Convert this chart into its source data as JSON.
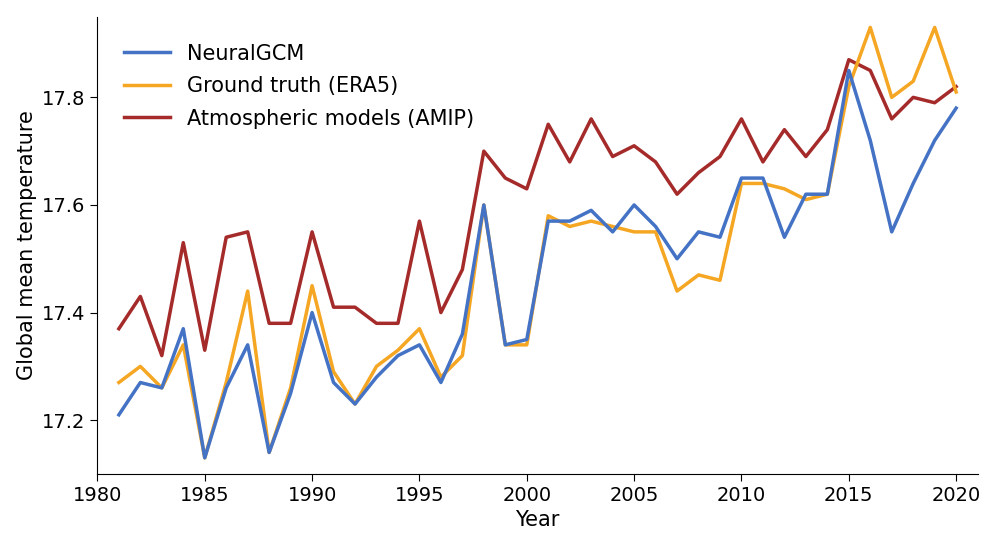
{
  "title": "",
  "xlabel": "Year",
  "ylabel": "Global mean temperature",
  "xlim": [
    1980,
    2021
  ],
  "ylim": [
    17.1,
    17.95
  ],
  "yticks": [
    17.2,
    17.4,
    17.6,
    17.8
  ],
  "xticks": [
    1980,
    1985,
    1990,
    1995,
    2000,
    2005,
    2010,
    2015,
    2020
  ],
  "background_color": "#ffffff",
  "neural_gcm": {
    "label": "NeuralGCM",
    "color": "#4472C4",
    "years": [
      1981,
      1982,
      1983,
      1984,
      1985,
      1986,
      1987,
      1988,
      1989,
      1990,
      1991,
      1992,
      1993,
      1994,
      1995,
      1996,
      1997,
      1998,
      1999,
      2000,
      2001,
      2002,
      2003,
      2004,
      2005,
      2006,
      2007,
      2008,
      2009,
      2010,
      2011,
      2012,
      2013,
      2014,
      2015,
      2016,
      2017,
      2018,
      2019,
      2020
    ],
    "values": [
      17.21,
      17.27,
      17.26,
      17.37,
      17.13,
      17.26,
      17.34,
      17.14,
      17.25,
      17.4,
      17.27,
      17.23,
      17.28,
      17.32,
      17.34,
      17.27,
      17.36,
      17.6,
      17.34,
      17.35,
      17.57,
      17.57,
      17.59,
      17.55,
      17.6,
      17.56,
      17.5,
      17.55,
      17.54,
      17.65,
      17.65,
      17.54,
      17.62,
      17.62,
      17.85,
      17.72,
      17.55,
      17.64,
      17.72,
      17.78
    ]
  },
  "era5": {
    "label": "Ground truth (ERA5)",
    "color": "#F5A623",
    "years": [
      1981,
      1982,
      1983,
      1984,
      1985,
      1986,
      1987,
      1988,
      1989,
      1990,
      1991,
      1992,
      1993,
      1994,
      1995,
      1996,
      1997,
      1998,
      1999,
      2000,
      2001,
      2002,
      2003,
      2004,
      2005,
      2006,
      2007,
      2008,
      2009,
      2010,
      2011,
      2012,
      2013,
      2014,
      2015,
      2016,
      2017,
      2018,
      2019,
      2020
    ],
    "values": [
      17.27,
      17.3,
      17.26,
      17.34,
      17.13,
      17.27,
      17.44,
      17.14,
      17.26,
      17.45,
      17.29,
      17.23,
      17.3,
      17.33,
      17.37,
      17.28,
      17.32,
      17.6,
      17.34,
      17.34,
      17.58,
      17.56,
      17.57,
      17.56,
      17.55,
      17.55,
      17.44,
      17.47,
      17.46,
      17.64,
      17.64,
      17.63,
      17.61,
      17.62,
      17.82,
      17.93,
      17.8,
      17.83,
      17.93,
      17.81
    ]
  },
  "amip": {
    "label": "Atmospheric models (AMIP)",
    "color": "#A52A2A",
    "years": [
      1981,
      1982,
      1983,
      1984,
      1985,
      1986,
      1987,
      1988,
      1989,
      1990,
      1991,
      1992,
      1993,
      1994,
      1995,
      1996,
      1997,
      1998,
      1999,
      2000,
      2001,
      2002,
      2003,
      2004,
      2005,
      2006,
      2007,
      2008,
      2009,
      2010,
      2011,
      2012,
      2013,
      2014,
      2015,
      2016,
      2017,
      2018,
      2019,
      2020
    ],
    "values": [
      17.37,
      17.43,
      17.32,
      17.53,
      17.33,
      17.54,
      17.55,
      17.38,
      17.38,
      17.55,
      17.41,
      17.41,
      17.38,
      17.38,
      17.57,
      17.4,
      17.48,
      17.7,
      17.65,
      17.63,
      17.75,
      17.68,
      17.76,
      17.69,
      17.71,
      17.68,
      17.62,
      17.66,
      17.69,
      17.76,
      17.68,
      17.74,
      17.69,
      17.74,
      17.87,
      17.85,
      17.76,
      17.8,
      17.79,
      17.82
    ]
  },
  "linewidth": 2.5,
  "legend_fontsize": 15,
  "axis_fontsize": 15,
  "tick_fontsize": 14
}
